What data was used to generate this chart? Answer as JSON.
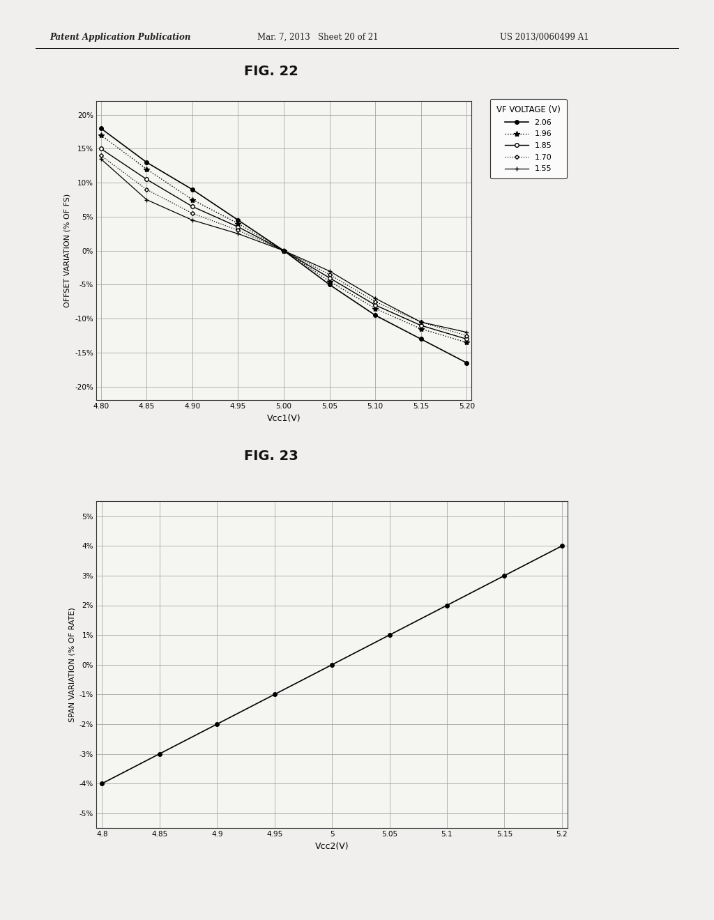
{
  "fig22": {
    "title": "FIG. 22",
    "xlabel": "Vcc1(V)",
    "ylabel": "OFFSET VARIATION (% OF FS)",
    "xdata": [
      4.8,
      4.85,
      4.9,
      4.95,
      5.0,
      5.05,
      5.1,
      5.15,
      5.2
    ],
    "series": [
      {
        "label": "2.06",
        "y": [
          18.0,
          13.0,
          9.0,
          4.5,
          0.0,
          -5.0,
          -9.5,
          -13.0,
          -16.5
        ],
        "linestyle": "-",
        "marker": "o",
        "markerfacecolor": "black",
        "markersize": 4,
        "color": "black",
        "linewidth": 1.2
      },
      {
        "label": "1.96",
        "y": [
          17.0,
          12.0,
          7.5,
          4.0,
          0.0,
          -4.5,
          -8.5,
          -11.5,
          -13.5
        ],
        "linestyle": ":",
        "marker": "*",
        "markerfacecolor": "black",
        "markersize": 6,
        "color": "black",
        "linewidth": 1.0
      },
      {
        "label": "1.85",
        "y": [
          15.0,
          10.5,
          6.5,
          3.5,
          0.0,
          -4.0,
          -8.0,
          -11.0,
          -13.0
        ],
        "linestyle": "-",
        "marker": "o",
        "markerfacecolor": "white",
        "markersize": 4,
        "color": "black",
        "linewidth": 1.0
      },
      {
        "label": "1.70",
        "y": [
          14.0,
          9.0,
          5.5,
          3.0,
          0.0,
          -3.5,
          -7.5,
          -10.5,
          -12.5
        ],
        "linestyle": ":",
        "marker": "D",
        "markerfacecolor": "white",
        "markersize": 3,
        "color": "black",
        "linewidth": 0.9
      },
      {
        "label": "1.55",
        "y": [
          13.5,
          7.5,
          4.5,
          2.5,
          0.0,
          -3.0,
          -7.0,
          -10.5,
          -12.0
        ],
        "linestyle": "-",
        "marker": "+",
        "markerfacecolor": "black",
        "markersize": 5,
        "color": "black",
        "linewidth": 0.9
      }
    ],
    "xlim": [
      4.795,
      5.205
    ],
    "ylim": [
      -22,
      22
    ],
    "xticks": [
      4.8,
      4.85,
      4.9,
      4.95,
      5.0,
      5.05,
      5.1,
      5.15,
      5.2
    ],
    "yticks": [
      -20,
      -15,
      -10,
      -5,
      0,
      5,
      10,
      15,
      20
    ],
    "ytick_labels": [
      "-20%",
      "-15%",
      "-10%",
      "-5%",
      "0%",
      "5%",
      "10%",
      "15%",
      "20%"
    ],
    "legend_title": "VF VOLTAGE (V)"
  },
  "fig23": {
    "title": "FIG. 23",
    "xlabel": "Vcc2(V)",
    "ylabel": "SPAN VARIATION (% OF RATE)",
    "xdata": [
      4.8,
      4.85,
      4.9,
      4.95,
      5.0,
      5.05,
      5.1,
      5.15,
      5.2
    ],
    "ydata": [
      -4.0,
      -3.0,
      -2.0,
      -1.0,
      0.0,
      1.0,
      2.0,
      3.0,
      4.0
    ],
    "xlim": [
      4.795,
      5.205
    ],
    "ylim": [
      -5.5,
      5.5
    ],
    "xticks": [
      4.8,
      4.85,
      4.9,
      4.95,
      5.0,
      5.05,
      5.1,
      5.15,
      5.2
    ],
    "xtick_labels": [
      "4.8",
      "4.85",
      "4.9",
      "4.95",
      "5",
      "5.05",
      "5.1",
      "5.15",
      "5.2"
    ],
    "yticks": [
      -5,
      -4,
      -3,
      -2,
      -1,
      0,
      1,
      2,
      3,
      4,
      5
    ],
    "ytick_labels": [
      "-5%",
      "-4%",
      "-3%",
      "-2%",
      "-1%",
      "0%",
      "1%",
      "2%",
      "3%",
      "4%",
      "5%"
    ]
  },
  "header_left": "Patent Application Publication",
  "header_center": "Mar. 7, 2013   Sheet 20 of 21",
  "header_right": "US 2013/0060499 A1",
  "page_color": "#f0efed"
}
